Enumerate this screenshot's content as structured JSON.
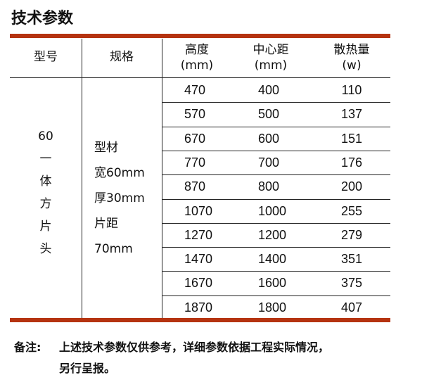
{
  "title": "技术参数",
  "headers": {
    "model": "型号",
    "spec": "规格",
    "height": [
      "高度",
      "(mm)"
    ],
    "center": [
      "中心距",
      "(mm)"
    ],
    "heat": [
      "散热量",
      "(w)"
    ]
  },
  "model_lines": [
    "60",
    "一",
    "体",
    "方",
    "片",
    "头"
  ],
  "spec_lines": [
    "型材",
    "宽60mm",
    "厚30mm",
    "片距",
    "70mm"
  ],
  "rows": [
    [
      "470",
      "400",
      "110"
    ],
    [
      "570",
      "500",
      "137"
    ],
    [
      "670",
      "600",
      "151"
    ],
    [
      "770",
      "700",
      "176"
    ],
    [
      "870",
      "800",
      "200"
    ],
    [
      "1070",
      "1000",
      "255"
    ],
    [
      "1270",
      "1200",
      "279"
    ],
    [
      "1470",
      "1400",
      "351"
    ],
    [
      "1670",
      "1600",
      "375"
    ],
    [
      "1870",
      "1800",
      "407"
    ]
  ],
  "note": {
    "label": "备注:",
    "line1": "上述技术参数仅供参考，详细参数依据工程实际情况，",
    "line2": "另行呈报。"
  },
  "colors": {
    "accent": "#b53310"
  }
}
